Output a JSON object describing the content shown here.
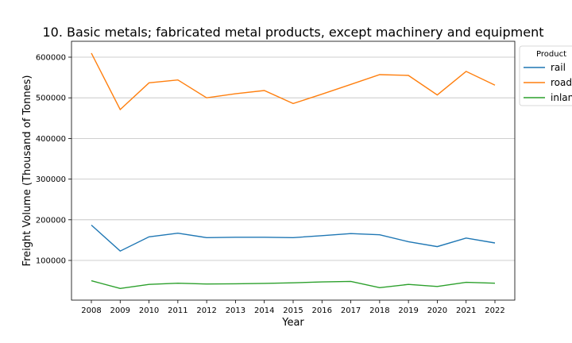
{
  "chart_data": {
    "type": "line",
    "title": "10. Basic metals; fabricated metal products, except machinery and equipment",
    "xlabel": "Year",
    "ylabel": "Freight Volume (Thousand of Tonnes)",
    "categories": [
      "2008",
      "2009",
      "2010",
      "2011",
      "2012",
      "2013",
      "2014",
      "2015",
      "2016",
      "2017",
      "2018",
      "2019",
      "2020",
      "2021",
      "2022"
    ],
    "y_ticks": [
      100000,
      200000,
      300000,
      400000,
      500000,
      600000
    ],
    "ylim": [
      0,
      640000
    ],
    "grid": "horizontal",
    "legend": {
      "title": "Product",
      "placement": "right, partially cut off"
    },
    "series": [
      {
        "name": "rail",
        "legend_text": "rail",
        "color": "#1f77b4",
        "values": [
          187000,
          123000,
          158000,
          167000,
          156000,
          157000,
          157000,
          156000,
          161000,
          166000,
          163000,
          146000,
          134000,
          155000,
          143000
        ]
      },
      {
        "name": "road",
        "legend_text": "road",
        "color": "#ff7f0e",
        "values": [
          610000,
          471000,
          537000,
          544000,
          500000,
          510000,
          518000,
          486000,
          509000,
          533000,
          557000,
          555000,
          507000,
          565000,
          531000
        ]
      },
      {
        "name": "inland",
        "legend_text": "inlan",
        "color": "#2ca02c",
        "values": [
          50000,
          31000,
          41000,
          44000,
          42000,
          42500,
          43500,
          45000,
          47000,
          48500,
          33000,
          41000,
          36000,
          46000,
          44000
        ]
      }
    ]
  }
}
